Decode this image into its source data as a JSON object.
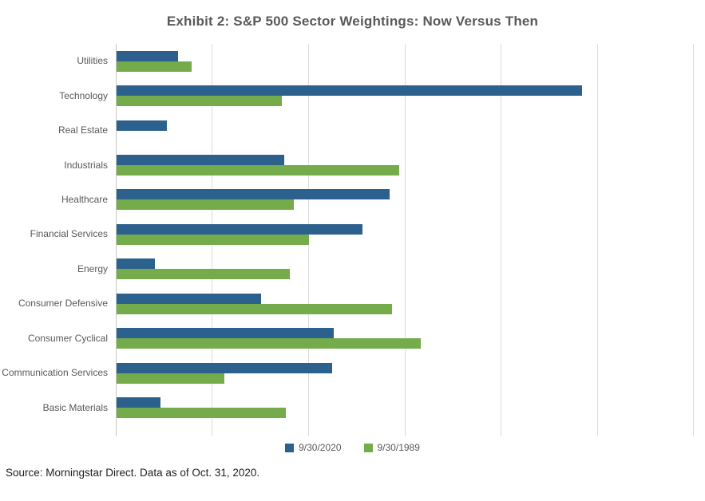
{
  "title": "Exhibit 2: S&P 500 Sector Weightings: Now Versus Then",
  "source_note": "Source: Morningstar Direct. Data as of Oct. 31, 2020.",
  "colors": {
    "series_2020": "#2C618E",
    "series_1989": "#74AC4C",
    "gridline": "#DCDCDC",
    "axis_line": "#C6C6C6",
    "title_text": "#58595B",
    "label_text": "#595959"
  },
  "chart_data": {
    "type": "bar",
    "orientation": "horizontal",
    "title": "Exhibit 2: S&P 500 Sector Weightings: Now Versus Then",
    "categories": [
      "Utilities",
      "Technology",
      "Real Estate",
      "Industrials",
      "Healthcare",
      "Financial Services",
      "Energy",
      "Consumer Defensive",
      "Consumer Cyclical",
      "Communication Services",
      "Basic Materials"
    ],
    "series": [
      {
        "name": "9/30/2020",
        "color": "#2C618E",
        "values": [
          3.2,
          24.2,
          2.6,
          8.7,
          14.2,
          12.8,
          2.0,
          7.5,
          11.3,
          11.2,
          2.3
        ]
      },
      {
        "name": "9/30/1989",
        "color": "#74AC4C",
        "values": [
          3.9,
          8.6,
          0,
          14.7,
          9.2,
          10.0,
          9.0,
          14.3,
          15.8,
          5.6,
          8.8
        ]
      }
    ],
    "xlabel": "",
    "ylabel": "",
    "xlim": [
      0,
      30
    ],
    "gridline_step": 5,
    "grid": true,
    "axis_tick_labels_visible": false,
    "legend_position": "bottom-center"
  }
}
